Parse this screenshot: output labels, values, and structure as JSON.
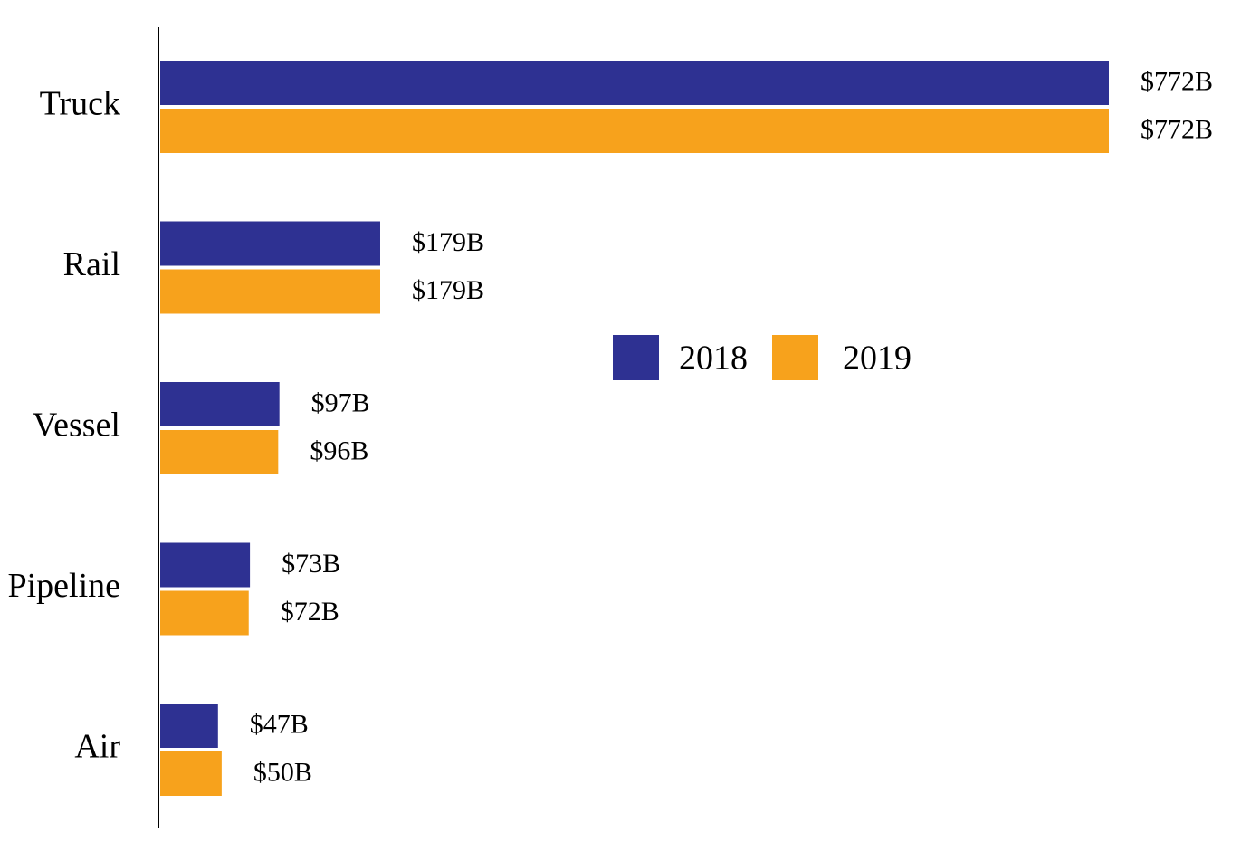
{
  "chart_data": {
    "type": "bar",
    "orientation": "horizontal",
    "categories": [
      "Truck",
      "Rail",
      "Vessel",
      "Pipeline",
      "Air"
    ],
    "series": [
      {
        "name": "2018",
        "color": "#2E3192",
        "values": [
          772,
          179,
          97,
          73,
          47
        ],
        "labels": [
          "$772B",
          "$179B",
          "$97B",
          "$73B",
          "$47B"
        ]
      },
      {
        "name": "2019",
        "color": "#F7A21C",
        "values": [
          772,
          179,
          96,
          72,
          50
        ],
        "labels": [
          "$772B",
          "$179B",
          "$96B",
          "$72B",
          "$50B"
        ]
      }
    ],
    "xlim": [
      0,
      772
    ],
    "grid": false,
    "legend_position": "center-right"
  }
}
